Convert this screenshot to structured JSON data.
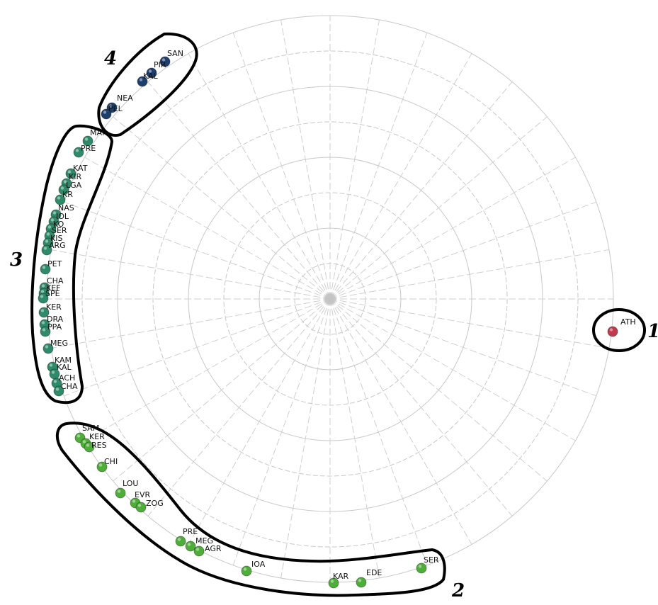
{
  "chart_data": {
    "type": "scatter",
    "title": "",
    "polar_grid": true,
    "groups": [
      {
        "name": "1",
        "color": "#c0394e",
        "points": [
          {
            "label": "ATH"
          }
        ]
      },
      {
        "name": "2",
        "color": "#4fae3a",
        "points": [
          {
            "label": "SAM"
          },
          {
            "label": "KER"
          },
          {
            "label": "RES"
          },
          {
            "label": "CHI"
          },
          {
            "label": "LOU"
          },
          {
            "label": "EVR"
          },
          {
            "label": "ZOG"
          },
          {
            "label": "PRE"
          },
          {
            "label": "MEG"
          },
          {
            "label": "AGR"
          },
          {
            "label": "IOA"
          },
          {
            "label": "KAR"
          },
          {
            "label": "EDE"
          },
          {
            "label": "SER"
          }
        ]
      },
      {
        "name": "3",
        "color": "#2f8a6a",
        "points": [
          {
            "label": "MAI"
          },
          {
            "label": "PRE"
          },
          {
            "label": "KAT"
          },
          {
            "label": "KIR"
          },
          {
            "label": "LGA"
          },
          {
            "label": "KR"
          },
          {
            "label": "NAS"
          },
          {
            "label": "IOL"
          },
          {
            "label": "KO"
          },
          {
            "label": "SER"
          },
          {
            "label": "KIS"
          },
          {
            "label": "ARG"
          },
          {
            "label": "PET"
          },
          {
            "label": "CHA"
          },
          {
            "label": "KEF"
          },
          {
            "label": "SPE"
          },
          {
            "label": "KER"
          },
          {
            "label": "DRA"
          },
          {
            "label": "PPA"
          },
          {
            "label": "MEG"
          },
          {
            "label": "KAM"
          },
          {
            "label": "KAL"
          },
          {
            "label": "ACH"
          },
          {
            "label": "CHA"
          }
        ]
      },
      {
        "name": "4",
        "color": "#1e3f6e",
        "points": [
          {
            "label": "SAN"
          },
          {
            "label": "PIR"
          },
          {
            "label": "KAL"
          },
          {
            "label": "NEA"
          },
          {
            "label": "PEL"
          }
        ]
      }
    ]
  }
}
